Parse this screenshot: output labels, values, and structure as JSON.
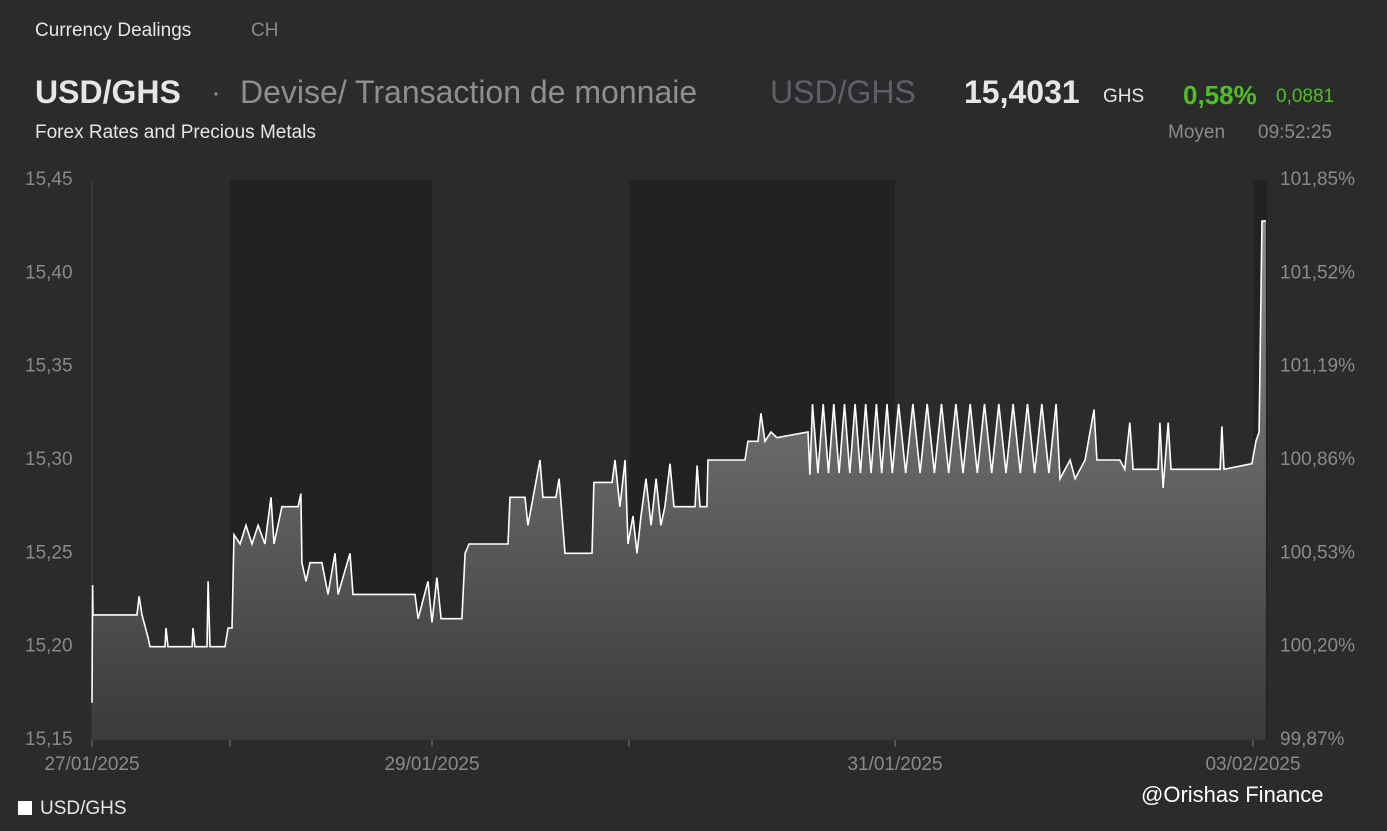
{
  "header": {
    "section": "Currency Dealings",
    "region": "CH",
    "symbol": "USD/GHS",
    "separator": "·",
    "instrument": "Devise/ Transaction de monnaie",
    "symbol_alt": "USD/GHS",
    "price": "15,4031",
    "currency": "GHS",
    "change_pct": "0,58%",
    "change_abs": "0,0881",
    "source": "Forex Rates and Precious Metals",
    "price_type": "Moyen",
    "time": "09:52:25"
  },
  "watermark": "@Orishas Finance",
  "chart_data": {
    "type": "area",
    "legend_position": "bottom-left",
    "xlim": [
      0,
      5.04
    ],
    "xticks": [
      {
        "value": 0,
        "label": "27/01/2025"
      },
      {
        "value": 2,
        "label": "29/01/2025"
      },
      {
        "value": 4,
        "label": "31/01/2025"
      },
      {
        "value": 5,
        "label": "03/02/2025"
      }
    ],
    "ylim": [
      15.15,
      15.45
    ],
    "yticks": [
      {
        "value": 15.15,
        "label": "15,15"
      },
      {
        "value": 15.2,
        "label": "15,20"
      },
      {
        "value": 15.25,
        "label": "15,25"
      },
      {
        "value": 15.3,
        "label": "15,30"
      },
      {
        "value": 15.35,
        "label": "15,35"
      },
      {
        "value": 15.4,
        "label": "15,40"
      },
      {
        "value": 15.45,
        "label": "15,45"
      }
    ],
    "y2lim": [
      99.87,
      101.85
    ],
    "y2ticks": [
      {
        "value": 99.87,
        "label": "99,87%"
      },
      {
        "value": 100.2,
        "label": "100,20%"
      },
      {
        "value": 100.53,
        "label": "100,53%"
      },
      {
        "value": 100.86,
        "label": "100,86%"
      },
      {
        "value": 101.19,
        "label": "101,19%"
      },
      {
        "value": 101.52,
        "label": "101,52%"
      },
      {
        "value": 101.85,
        "label": "101,85%"
      }
    ],
    "series": [
      {
        "name": "USD/GHS",
        "color": "#ffffff",
        "x": [
          0,
          0.004,
          0.007,
          0.326,
          0.341,
          0.362,
          0.406,
          0.42,
          0.529,
          0.536,
          0.551,
          0.725,
          0.732,
          0.746,
          0.833,
          0.841,
          0.855,
          0.964,
          0.986,
          1.01,
          1.02,
          1.05,
          1.079,
          1.109,
          1.139,
          1.173,
          1.203,
          1.218,
          1.257,
          1.337,
          1.351,
          1.356,
          1.376,
          1.396,
          1.455,
          1.485,
          1.52,
          1.535,
          1.594,
          1.609,
          1.916,
          1.931,
          1.98,
          2.0,
          2.025,
          2.046,
          2.152,
          2.168,
          2.188,
          2.386,
          2.396,
          2.472,
          2.487,
          2.548,
          2.563,
          2.629,
          2.645,
          2.675,
          2.812,
          2.822,
          2.914,
          2.929,
          2.954,
          2.98,
          2.995,
          3.015,
          3.03,
          3.045,
          3.064,
          3.083,
          3.102,
          3.12,
          3.135,
          3.154,
          3.169,
          3.248,
          3.256,
          3.267,
          3.293,
          3.297,
          3.436,
          3.447,
          3.485,
          3.496,
          3.511,
          3.534,
          3.556,
          3.673,
          3.68,
          3.69,
          3.71,
          3.73,
          3.75,
          3.77,
          3.79,
          3.81,
          3.83,
          3.85,
          3.87,
          3.89,
          3.91,
          3.93,
          3.95,
          3.97,
          3.99,
          4.01,
          4.03,
          4.05,
          4.07,
          4.09,
          4.11,
          4.13,
          4.15,
          4.17,
          4.19,
          4.21,
          4.23,
          4.25,
          4.27,
          4.29,
          4.31,
          4.33,
          4.35,
          4.37,
          4.39,
          4.41,
          4.43,
          4.45,
          4.461,
          4.489,
          4.503,
          4.531,
          4.556,
          4.564,
          4.628,
          4.642,
          4.656,
          4.665,
          4.735,
          4.74,
          4.749,
          4.763,
          4.771,
          4.908,
          4.913,
          4.919,
          4.997,
          5.008,
          5.017,
          5.025,
          5.036
        ],
        "values": [
          15.17,
          15.233,
          15.217,
          15.217,
          15.227,
          15.217,
          15.205,
          15.2,
          15.2,
          15.21,
          15.2,
          15.2,
          15.21,
          15.2,
          15.2,
          15.235,
          15.2,
          15.2,
          15.21,
          15.21,
          15.26,
          15.255,
          15.265,
          15.255,
          15.265,
          15.255,
          15.28,
          15.255,
          15.275,
          15.275,
          15.282,
          15.245,
          15.235,
          15.245,
          15.245,
          15.228,
          15.25,
          15.228,
          15.25,
          15.228,
          15.228,
          15.215,
          15.235,
          15.213,
          15.237,
          15.215,
          15.215,
          15.25,
          15.255,
          15.255,
          15.28,
          15.28,
          15.265,
          15.3,
          15.28,
          15.28,
          15.29,
          15.25,
          15.25,
          15.288,
          15.288,
          15.3,
          15.275,
          15.3,
          15.255,
          15.27,
          15.25,
          15.27,
          15.29,
          15.265,
          15.29,
          15.265,
          15.275,
          15.298,
          15.275,
          15.275,
          15.297,
          15.275,
          15.275,
          15.3,
          15.3,
          15.31,
          15.31,
          15.325,
          15.31,
          15.315,
          15.312,
          15.315,
          15.292,
          15.33,
          15.293,
          15.33,
          15.293,
          15.33,
          15.293,
          15.33,
          15.293,
          15.33,
          15.293,
          15.33,
          15.293,
          15.33,
          15.293,
          15.33,
          15.293,
          15.33,
          15.293,
          15.33,
          15.293,
          15.33,
          15.293,
          15.33,
          15.293,
          15.33,
          15.293,
          15.33,
          15.293,
          15.33,
          15.293,
          15.33,
          15.293,
          15.33,
          15.293,
          15.33,
          15.293,
          15.33,
          15.293,
          15.33,
          15.29,
          15.3,
          15.29,
          15.3,
          15.327,
          15.3,
          15.3,
          15.295,
          15.32,
          15.295,
          15.295,
          15.32,
          15.285,
          15.32,
          15.295,
          15.295,
          15.318,
          15.295,
          15.298,
          15.31,
          15.315,
          15.428,
          15.428
        ]
      }
    ]
  }
}
